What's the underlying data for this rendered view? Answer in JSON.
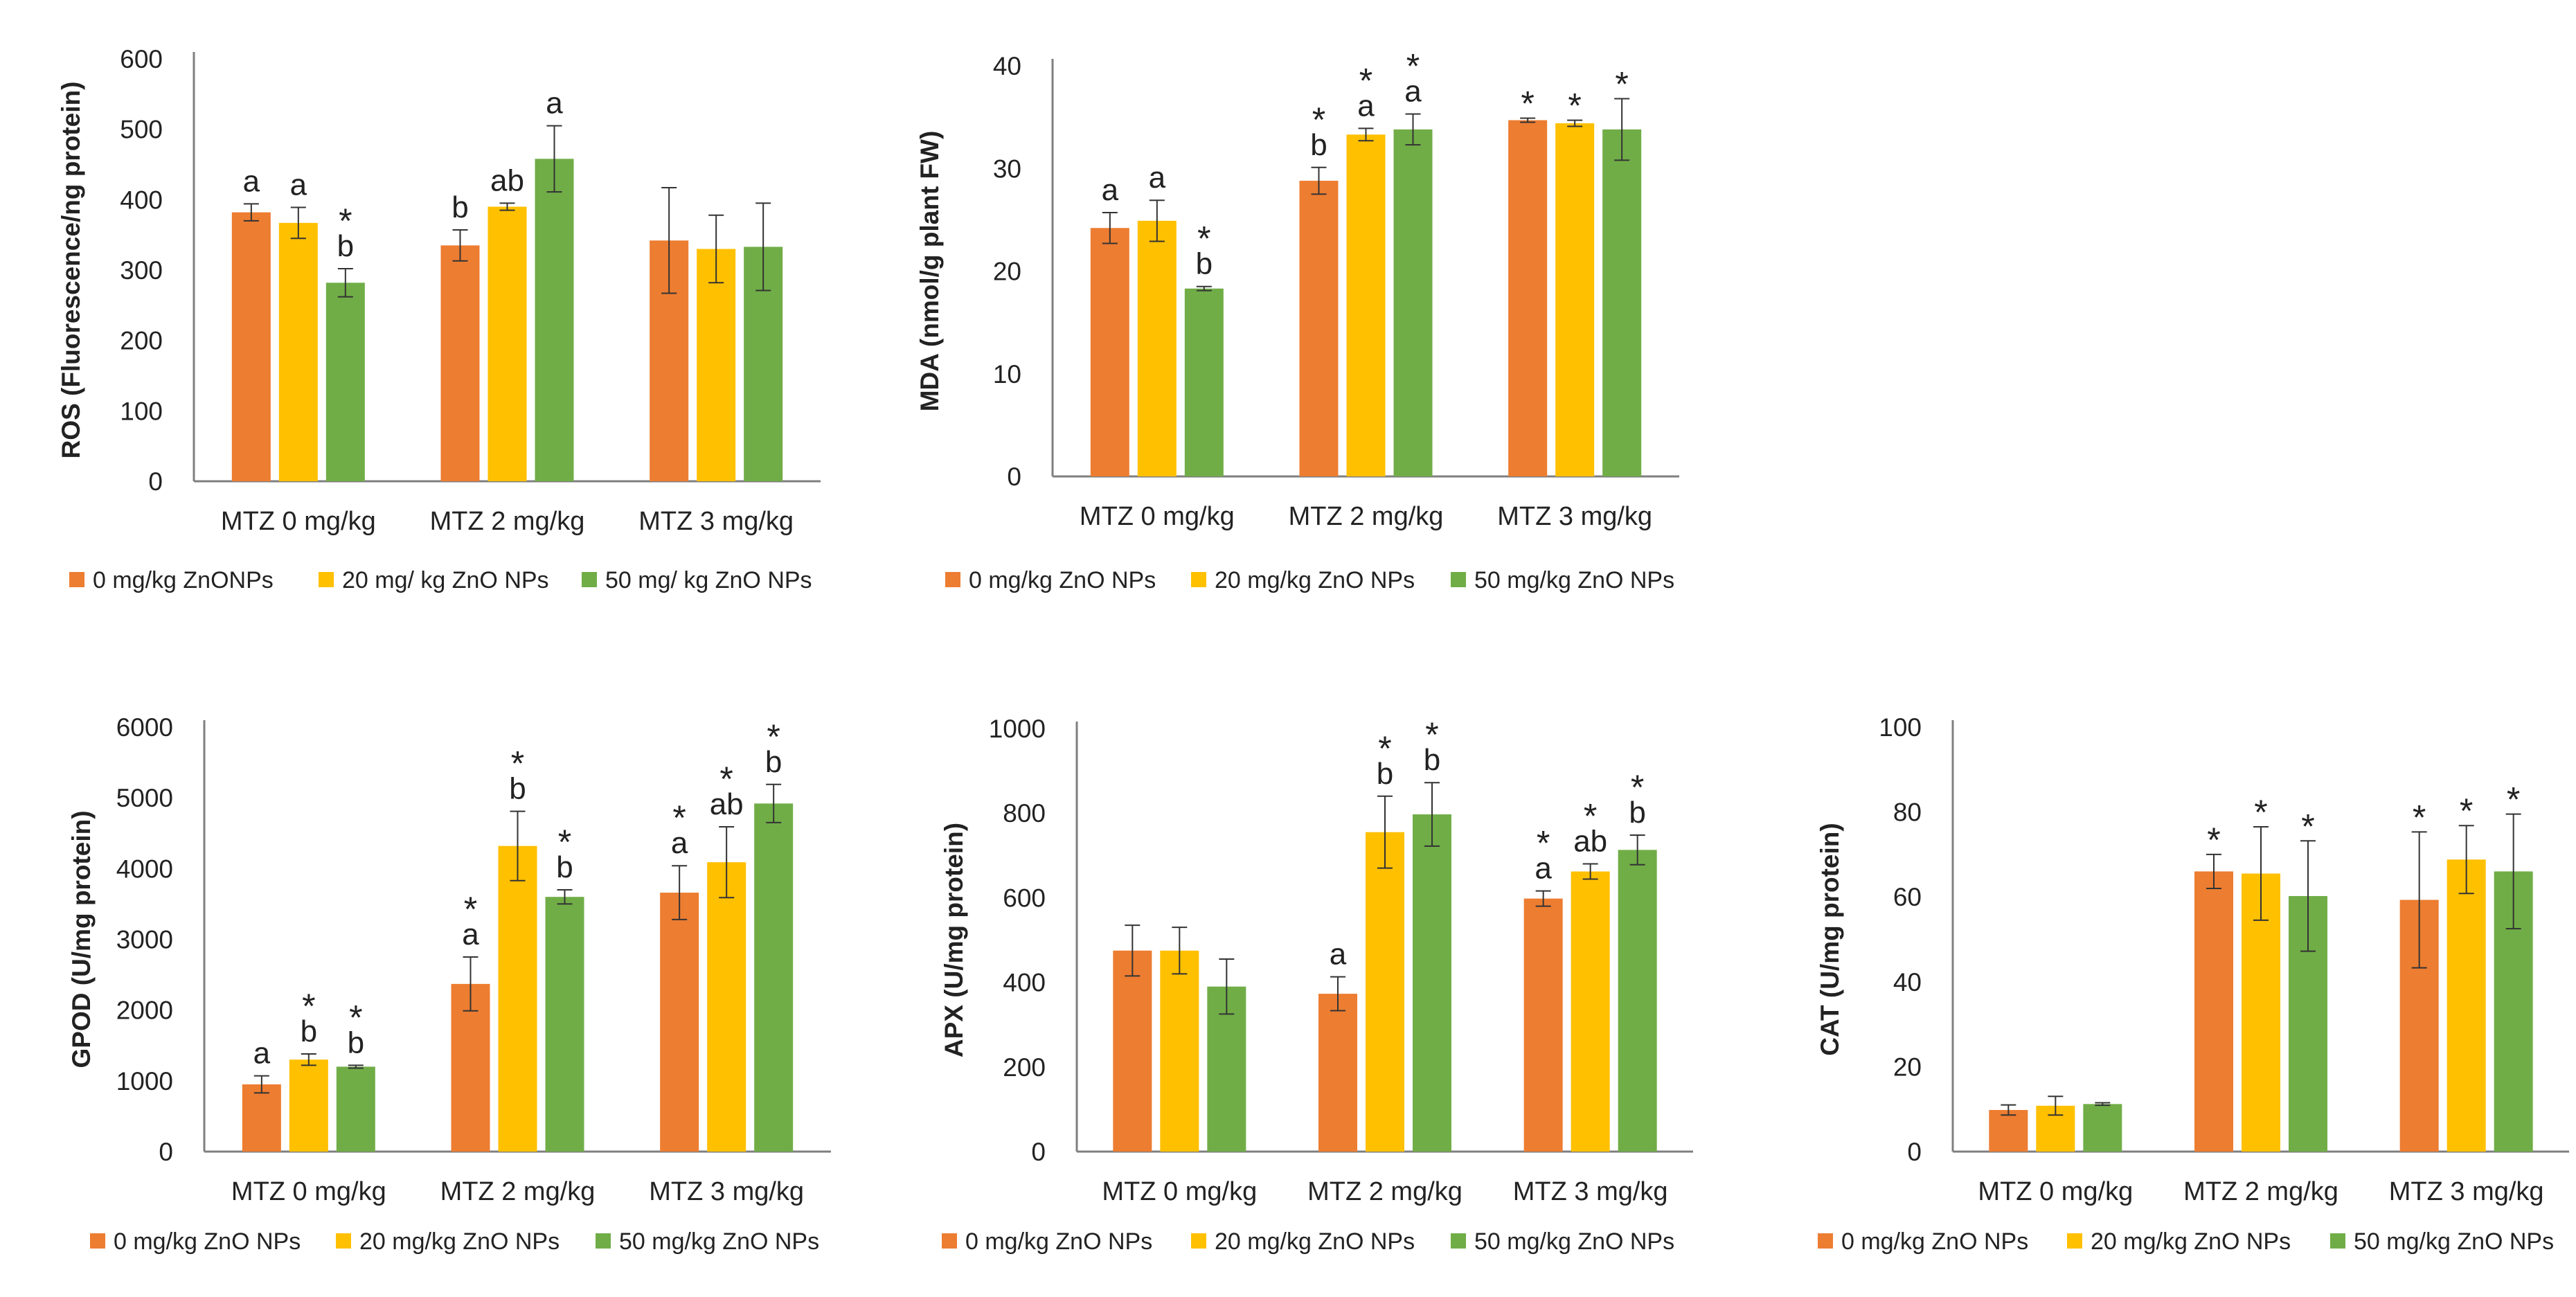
{
  "colors": {
    "s0": "#ED7D31",
    "s1": "#FFC000",
    "s2": "#70AD47",
    "axis": "#7f7f7f",
    "error": "#333333"
  },
  "chart_data": [
    {
      "type": "bar",
      "ylabel": "ROS (Fluorescence/ng protein)",
      "ylim": [
        0,
        600
      ],
      "yticks": [
        "0",
        "100",
        "200",
        "300",
        "400",
        "500",
        "600"
      ],
      "categories": [
        "MTZ 0 mg/kg",
        "MTZ 2 mg/kg",
        "MTZ 3 mg/kg"
      ],
      "legend": [
        "0 mg/kg ZnONPs",
        "20 mg/ kg ZnO NPs",
        "50 mg/ kg ZnO NPs"
      ],
      "series": [
        {
          "name": "0 mg/kg ZnONPs",
          "values": [
            382,
            335,
            342
          ],
          "errors": [
            12,
            22,
            75
          ],
          "labels": [
            "a",
            "b",
            ""
          ],
          "star": [
            false,
            false,
            false
          ]
        },
        {
          "name": "20 mg/ kg ZnO NPs",
          "values": [
            367,
            390,
            330
          ],
          "errors": [
            22,
            5,
            48
          ],
          "labels": [
            "a",
            "ab",
            ""
          ],
          "star": [
            false,
            false,
            false
          ]
        },
        {
          "name": "50 mg/ kg ZnO NPs",
          "values": [
            282,
            458,
            333
          ],
          "errors": [
            20,
            47,
            62
          ],
          "labels": [
            "b",
            "a",
            ""
          ],
          "star": [
            true,
            false,
            false
          ]
        }
      ]
    },
    {
      "type": "bar",
      "ylabel": "MDA (nmol/g plant FW)",
      "ylim": [
        0,
        40
      ],
      "yticks": [
        "0",
        "10",
        "20",
        "30",
        "40"
      ],
      "categories": [
        "MTZ 0 mg/kg",
        "MTZ 2 mg/kg",
        "MTZ 3 mg/kg"
      ],
      "legend": [
        "0 mg/kg ZnO NPs",
        "20 mg/kg ZnO NPs",
        "50 mg/kg ZnO NPs"
      ],
      "series": [
        {
          "name": "0 mg/kg ZnO NPs",
          "values": [
            24.2,
            28.8,
            34.7
          ],
          "errors": [
            1.5,
            1.3,
            0.2
          ],
          "labels": [
            "a",
            "b",
            ""
          ],
          "star": [
            false,
            true,
            true
          ]
        },
        {
          "name": "20 mg/kg ZnO NPs",
          "values": [
            24.9,
            33.3,
            34.4
          ],
          "errors": [
            2.0,
            0.6,
            0.3
          ],
          "labels": [
            "a",
            "a",
            ""
          ],
          "star": [
            false,
            true,
            true
          ]
        },
        {
          "name": "50 mg/kg ZnO NPs",
          "values": [
            18.3,
            33.8,
            33.8
          ],
          "errors": [
            0.2,
            1.5,
            3.0
          ],
          "labels": [
            "b",
            "a",
            ""
          ],
          "star": [
            true,
            true,
            true
          ]
        }
      ]
    },
    {
      "type": "bar",
      "ylabel": "GPOD (U/mg protein)",
      "ylim": [
        0,
        6000
      ],
      "yticks": [
        "0",
        "1000",
        "2000",
        "3000",
        "4000",
        "5000",
        "6000"
      ],
      "categories": [
        "MTZ 0 mg/kg",
        "MTZ 2 mg/kg",
        "MTZ 3 mg/kg"
      ],
      "legend": [
        "0 mg/kg ZnO NPs",
        "20 mg/kg ZnO NPs",
        "50 mg/kg ZnO NPs"
      ],
      "series": [
        {
          "name": "0 mg/kg ZnO NPs",
          "values": [
            950,
            2370,
            3660
          ],
          "errors": [
            120,
            380,
            380
          ],
          "labels": [
            "a",
            "a",
            "a"
          ],
          "star": [
            false,
            true,
            true
          ]
        },
        {
          "name": "20 mg/kg ZnO NPs",
          "values": [
            1300,
            4320,
            4090
          ],
          "errors": [
            80,
            490,
            500
          ],
          "labels": [
            "b",
            "b",
            "ab"
          ],
          "star": [
            true,
            true,
            true
          ]
        },
        {
          "name": "50 mg/kg ZnO NPs",
          "values": [
            1200,
            3600,
            4920
          ],
          "errors": [
            20,
            100,
            270
          ],
          "labels": [
            "b",
            "b",
            "b"
          ],
          "star": [
            true,
            true,
            true
          ]
        }
      ]
    },
    {
      "type": "bar",
      "ylabel": "APX (U/mg protein)",
      "ylim": [
        0,
        1000
      ],
      "yticks": [
        "0",
        "200",
        "400",
        "600",
        "800",
        "1000"
      ],
      "categories": [
        "MTZ 0 mg/kg",
        "MTZ 2 mg/kg",
        "MTZ 3 mg/kg"
      ],
      "legend": [
        "0 mg/kg ZnO NPs",
        "20 mg/kg ZnO NPs",
        "50 mg/kg ZnO NPs"
      ],
      "series": [
        {
          "name": "0 mg/kg ZnO NPs",
          "values": [
            475,
            373,
            598
          ],
          "errors": [
            60,
            40,
            18
          ],
          "labels": [
            "",
            "a",
            "a"
          ],
          "star": [
            false,
            false,
            true
          ]
        },
        {
          "name": "20 mg/kg ZnO NPs",
          "values": [
            475,
            755,
            662
          ],
          "errors": [
            55,
            85,
            18
          ],
          "labels": [
            "",
            "b",
            "ab"
          ],
          "star": [
            false,
            true,
            true
          ]
        },
        {
          "name": "50 mg/kg ZnO NPs",
          "values": [
            390,
            797,
            713
          ],
          "errors": [
            65,
            75,
            35
          ],
          "labels": [
            "",
            "b",
            "b"
          ],
          "star": [
            false,
            true,
            true
          ]
        }
      ]
    },
    {
      "type": "bar",
      "ylabel": "CAT (U/mg protein)",
      "ylim": [
        0,
        100
      ],
      "yticks": [
        "0",
        "20",
        "40",
        "60",
        "80",
        "100"
      ],
      "categories": [
        "MTZ 0 mg/kg",
        "MTZ 2 mg/kg",
        "MTZ 3 mg/kg"
      ],
      "legend": [
        "0 mg/kg ZnO NPs",
        "20 mg/kg ZnO NPs",
        "50 mg/kg ZnO NPs"
      ],
      "series": [
        {
          "name": "0 mg/kg ZnO NPs",
          "values": [
            9.8,
            66,
            59.3
          ],
          "errors": [
            1.2,
            4,
            16
          ],
          "labels": [
            "",
            "",
            ""
          ],
          "star": [
            false,
            true,
            true
          ]
        },
        {
          "name": "20 mg/kg ZnO NPs",
          "values": [
            10.8,
            65.5,
            68.8
          ],
          "errors": [
            2.2,
            11,
            8
          ],
          "labels": [
            "",
            "",
            ""
          ],
          "star": [
            false,
            true,
            true
          ]
        },
        {
          "name": "50 mg/kg ZnO NPs",
          "values": [
            11.2,
            60.2,
            66
          ],
          "errors": [
            0.3,
            13,
            13.5
          ],
          "labels": [
            "",
            "",
            ""
          ],
          "star": [
            false,
            true,
            true
          ]
        }
      ]
    }
  ]
}
